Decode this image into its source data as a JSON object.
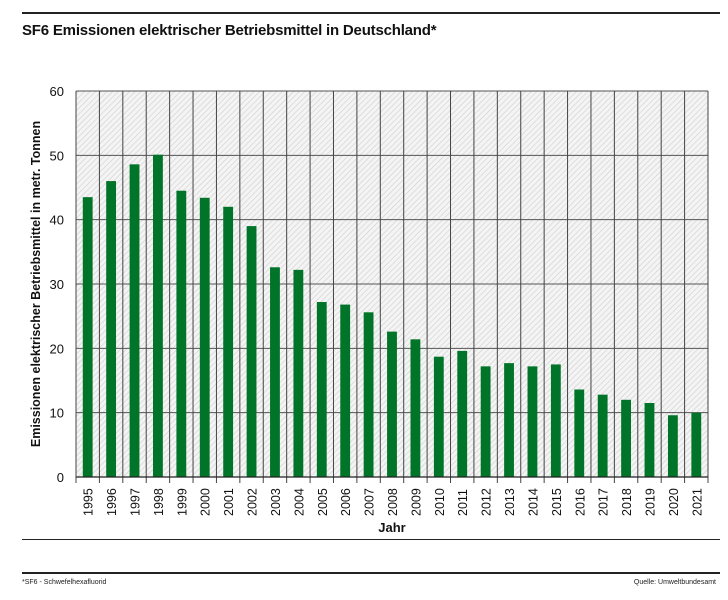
{
  "title": "SF6 Emissionen elektrischer Betriebsmittel in Deutschland*",
  "footnote": "*SF6 - Schwefelhexafluorid",
  "source": "Quelle: Umweltbundesamt",
  "chart_data": {
    "type": "bar",
    "title": "SF6 Emissionen elektrischer Betriebsmittel in Deutschland*",
    "xlabel": "Jahr",
    "ylabel": "Emissionen elektrischer Betriebsmittel in metr. Tonnen",
    "ylim": [
      0,
      60
    ],
    "yticks": [
      0,
      10,
      20,
      30,
      40,
      50,
      60
    ],
    "grid": true,
    "bar_color": "#007428",
    "categories": [
      "1995",
      "1996",
      "1997",
      "1998",
      "1999",
      "2000",
      "2001",
      "2002",
      "2003",
      "2004",
      "2005",
      "2006",
      "2007",
      "2008",
      "2009",
      "2010",
      "2011",
      "2012",
      "2013",
      "2014",
      "2015",
      "2016",
      "2017",
      "2018",
      "2019",
      "2020",
      "2021"
    ],
    "values": [
      43.5,
      46.0,
      48.6,
      50.1,
      44.5,
      43.4,
      42.0,
      39.0,
      32.6,
      32.2,
      27.2,
      26.8,
      25.6,
      22.6,
      21.4,
      18.7,
      19.6,
      17.2,
      17.7,
      17.2,
      17.5,
      13.6,
      12.8,
      12.0,
      11.5,
      9.6,
      10.0
    ]
  }
}
